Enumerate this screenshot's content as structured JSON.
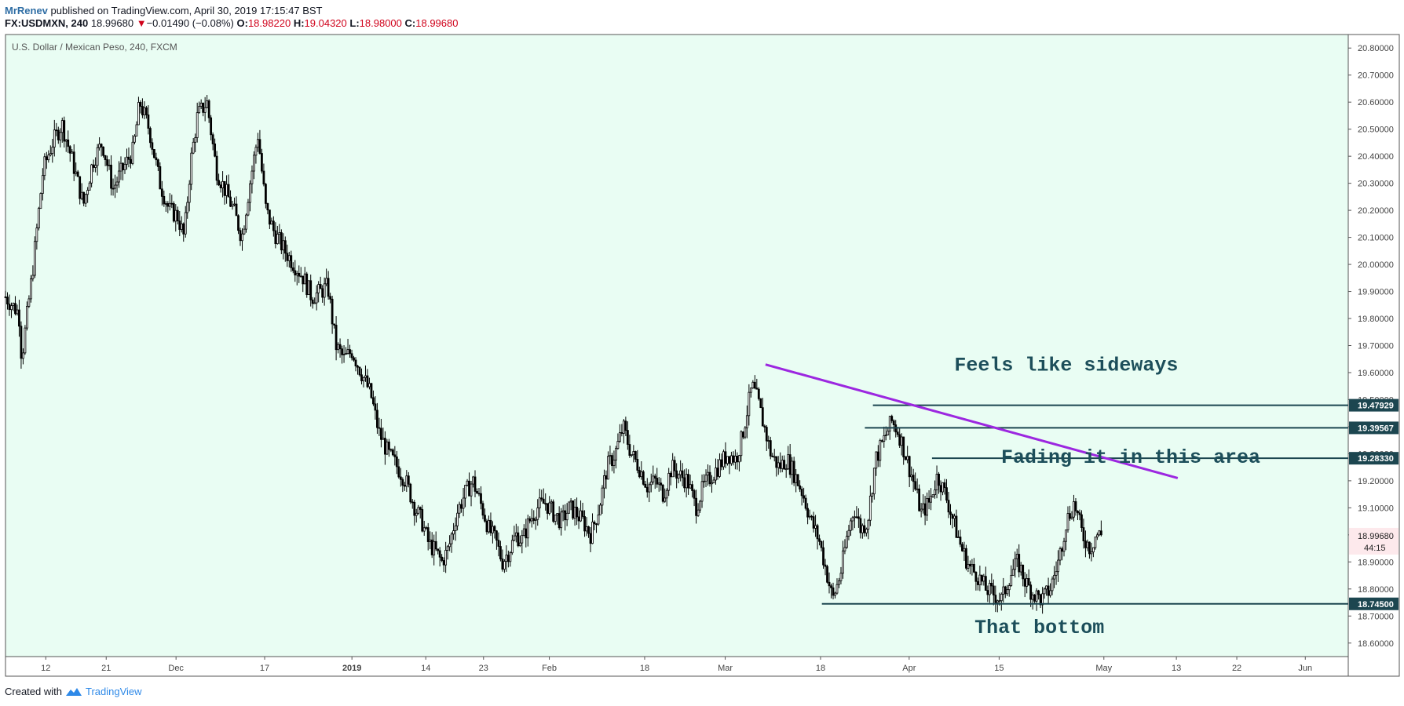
{
  "header": {
    "author": "MrRenev",
    "published": "published on TradingView.com, April 30, 2019 17:15:47 BST",
    "symbol": "FX:USDMXN, 240",
    "last": "18.99680",
    "change": "−0.01490 (−0.08%)",
    "open_label": "O:",
    "open": "18.98220",
    "high_label": "H:",
    "high": "19.04320",
    "low_label": "L:",
    "low": "18.98000",
    "close_label": "C:",
    "close": "18.99680"
  },
  "footer": {
    "created_with": "Created with",
    "brand": "TradingView"
  },
  "colors": {
    "plot_bg": "#e9fdf3",
    "candle": "#000000",
    "trend": "#9c27e0",
    "level": "#1c4650",
    "annotation": "#1c4e5a",
    "price_up": "#000000",
    "price_down": "#d0021b",
    "author": "#2e6da4"
  },
  "chart_data": {
    "type": "candlestick",
    "title": "U.S. Dollar / Mexican Peso, 240, FXCM",
    "ylim": [
      18.55,
      20.85
    ],
    "y_ticks": [
      "20.80000",
      "20.70000",
      "20.60000",
      "20.50000",
      "20.40000",
      "20.30000",
      "20.20000",
      "20.10000",
      "20.00000",
      "19.90000",
      "19.80000",
      "19.70000",
      "19.60000",
      "19.50000",
      "19.40000",
      "19.30000",
      "19.20000",
      "19.10000",
      "19.00000",
      "18.90000",
      "18.80000",
      "18.70000",
      "18.60000"
    ],
    "x_ticks": [
      {
        "label": "12",
        "pos": 0.03
      },
      {
        "label": "21",
        "pos": 0.075
      },
      {
        "label": "Dec",
        "pos": 0.127
      },
      {
        "label": "17",
        "pos": 0.193
      },
      {
        "label": "2019",
        "pos": 0.258
      },
      {
        "label": "14",
        "pos": 0.313
      },
      {
        "label": "23",
        "pos": 0.356
      },
      {
        "label": "Feb",
        "pos": 0.405
      },
      {
        "label": "18",
        "pos": 0.476
      },
      {
        "label": "Mar",
        "pos": 0.536
      },
      {
        "label": "18",
        "pos": 0.607
      },
      {
        "label": "Apr",
        "pos": 0.673
      },
      {
        "label": "15",
        "pos": 0.74
      },
      {
        "label": "May",
        "pos": 0.818
      },
      {
        "label": "13",
        "pos": 0.872
      },
      {
        "label": "22",
        "pos": 0.917
      },
      {
        "label": "Jun",
        "pos": 0.968
      }
    ],
    "price_path": [
      [
        0.0,
        19.88
      ],
      [
        0.01,
        19.82
      ],
      [
        0.012,
        19.65
      ],
      [
        0.02,
        19.97
      ],
      [
        0.028,
        20.35
      ],
      [
        0.035,
        20.45
      ],
      [
        0.042,
        20.52
      ],
      [
        0.05,
        20.38
      ],
      [
        0.058,
        20.22
      ],
      [
        0.065,
        20.38
      ],
      [
        0.072,
        20.45
      ],
      [
        0.08,
        20.28
      ],
      [
        0.087,
        20.35
      ],
      [
        0.095,
        20.42
      ],
      [
        0.1,
        20.6
      ],
      [
        0.107,
        20.5
      ],
      [
        0.115,
        20.3
      ],
      [
        0.122,
        20.2
      ],
      [
        0.128,
        20.18
      ],
      [
        0.133,
        20.1
      ],
      [
        0.138,
        20.38
      ],
      [
        0.143,
        20.55
      ],
      [
        0.15,
        20.6
      ],
      [
        0.157,
        20.35
      ],
      [
        0.163,
        20.28
      ],
      [
        0.17,
        20.2
      ],
      [
        0.176,
        20.1
      ],
      [
        0.182,
        20.3
      ],
      [
        0.188,
        20.48
      ],
      [
        0.194,
        20.2
      ],
      [
        0.2,
        20.12
      ],
      [
        0.208,
        20.05
      ],
      [
        0.215,
        20.0
      ],
      [
        0.222,
        19.95
      ],
      [
        0.228,
        19.88
      ],
      [
        0.235,
        19.9
      ],
      [
        0.24,
        19.92
      ],
      [
        0.246,
        19.7
      ],
      [
        0.252,
        19.65
      ],
      [
        0.258,
        19.68
      ],
      [
        0.265,
        19.6
      ],
      [
        0.272,
        19.52
      ],
      [
        0.278,
        19.38
      ],
      [
        0.285,
        19.3
      ],
      [
        0.292,
        19.25
      ],
      [
        0.298,
        19.2
      ],
      [
        0.305,
        19.1
      ],
      [
        0.31,
        19.05
      ],
      [
        0.315,
        18.97
      ],
      [
        0.32,
        18.94
      ],
      [
        0.325,
        18.9
      ],
      [
        0.33,
        18.95
      ],
      [
        0.336,
        19.08
      ],
      [
        0.342,
        19.15
      ],
      [
        0.348,
        19.2
      ],
      [
        0.355,
        19.1
      ],
      [
        0.36,
        19.02
      ],
      [
        0.365,
        18.98
      ],
      [
        0.37,
        18.9
      ],
      [
        0.375,
        18.94
      ],
      [
        0.38,
        19.0
      ],
      [
        0.385,
        18.98
      ],
      [
        0.39,
        19.05
      ],
      [
        0.396,
        19.1
      ],
      [
        0.402,
        19.12
      ],
      [
        0.408,
        19.08
      ],
      [
        0.414,
        19.05
      ],
      [
        0.42,
        19.1
      ],
      [
        0.425,
        19.08
      ],
      [
        0.43,
        19.05
      ],
      [
        0.436,
        19.0
      ],
      [
        0.442,
        19.1
      ],
      [
        0.448,
        19.25
      ],
      [
        0.454,
        19.3
      ],
      [
        0.46,
        19.4
      ],
      [
        0.466,
        19.3
      ],
      [
        0.472,
        19.25
      ],
      [
        0.478,
        19.18
      ],
      [
        0.484,
        19.2
      ],
      [
        0.49,
        19.15
      ],
      [
        0.496,
        19.25
      ],
      [
        0.502,
        19.22
      ],
      [
        0.508,
        19.2
      ],
      [
        0.514,
        19.1
      ],
      [
        0.52,
        19.18
      ],
      [
        0.526,
        19.22
      ],
      [
        0.532,
        19.26
      ],
      [
        0.538,
        19.3
      ],
      [
        0.544,
        19.28
      ],
      [
        0.548,
        19.35
      ],
      [
        0.552,
        19.45
      ],
      [
        0.556,
        19.55
      ],
      [
        0.56,
        19.5
      ],
      [
        0.565,
        19.4
      ],
      [
        0.57,
        19.3
      ],
      [
        0.576,
        19.25
      ],
      [
        0.582,
        19.28
      ],
      [
        0.588,
        19.22
      ],
      [
        0.594,
        19.15
      ],
      [
        0.6,
        19.05
      ],
      [
        0.606,
        18.98
      ],
      [
        0.612,
        18.85
      ],
      [
        0.616,
        18.76
      ],
      [
        0.622,
        18.86
      ],
      [
        0.627,
        19.0
      ],
      [
        0.632,
        19.1
      ],
      [
        0.637,
        19.02
      ],
      [
        0.642,
        19.05
      ],
      [
        0.648,
        19.28
      ],
      [
        0.654,
        19.35
      ],
      [
        0.66,
        19.42
      ],
      [
        0.665,
        19.38
      ],
      [
        0.67,
        19.3
      ],
      [
        0.676,
        19.2
      ],
      [
        0.682,
        19.08
      ],
      [
        0.688,
        19.12
      ],
      [
        0.694,
        19.22
      ],
      [
        0.7,
        19.15
      ],
      [
        0.706,
        19.05
      ],
      [
        0.712,
        18.95
      ],
      [
        0.718,
        18.88
      ],
      [
        0.724,
        18.85
      ],
      [
        0.73,
        18.8
      ],
      [
        0.736,
        18.78
      ],
      [
        0.742,
        18.76
      ],
      [
        0.748,
        18.85
      ],
      [
        0.754,
        18.9
      ],
      [
        0.76,
        18.82
      ],
      [
        0.766,
        18.78
      ],
      [
        0.772,
        18.76
      ],
      [
        0.778,
        18.8
      ],
      [
        0.784,
        18.9
      ],
      [
        0.79,
        19.05
      ],
      [
        0.796,
        19.12
      ],
      [
        0.802,
        19.0
      ],
      [
        0.808,
        18.95
      ],
      [
        0.812,
        19.0
      ],
      [
        0.816,
        19.0
      ]
    ],
    "trendline": {
      "from": {
        "x": 0.566,
        "y": 19.63
      },
      "to": {
        "x": 0.873,
        "y": 19.21
      }
    },
    "horizontal_levels": [
      {
        "price": 19.47929,
        "label": "19.47929",
        "x_start": 0.646
      },
      {
        "price": 19.39567,
        "label": "19.39567",
        "x_start": 0.64
      },
      {
        "price": 19.2833,
        "label": "19.28330",
        "x_start": 0.69
      },
      {
        "price": 18.745,
        "label": "18.74500",
        "x_start": 0.608
      }
    ],
    "current_price": {
      "price": 18.9968,
      "label": "18.99680",
      "countdown": "44:15"
    },
    "annotations": [
      {
        "text": "Feels like sideways",
        "x": 0.79,
        "y": 19.63
      },
      {
        "text": "Fading it in this area",
        "x": 0.838,
        "y": 19.29
      },
      {
        "text": "That bottom",
        "x": 0.77,
        "y": 18.66
      }
    ]
  }
}
